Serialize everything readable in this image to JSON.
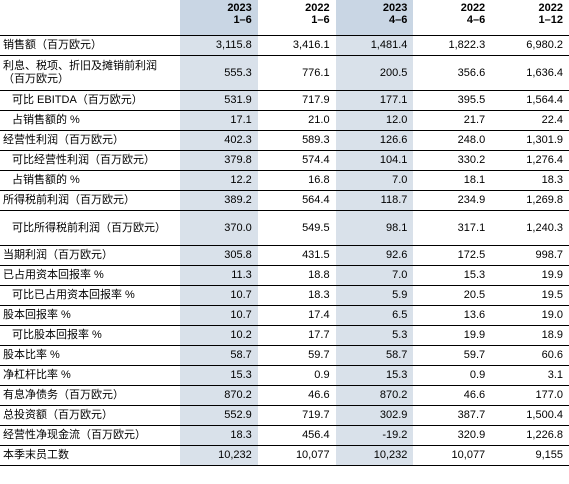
{
  "columns": [
    {
      "year": "2023",
      "period": "1–6",
      "highlight": true
    },
    {
      "year": "2022",
      "period": "1–6",
      "highlight": false
    },
    {
      "year": "2023",
      "period": "4–6",
      "highlight": true
    },
    {
      "year": "2022",
      "period": "4–6",
      "highlight": false
    },
    {
      "year": "2022",
      "period": "1–12",
      "highlight": false
    }
  ],
  "rows": [
    {
      "label": "销售额（百万欧元）",
      "indent": false,
      "values": [
        "3,115.8",
        "3,416.1",
        "1,481.4",
        "1,822.3",
        "6,980.2"
      ]
    },
    {
      "label": "利息、税项、折旧及摊销前利润（百万欧元）",
      "indent": false,
      "values": [
        "555.3",
        "776.1",
        "200.5",
        "356.6",
        "1,636.4"
      ]
    },
    {
      "label": "可比 EBITDA（百万欧元）",
      "indent": true,
      "values": [
        "531.9",
        "717.9",
        "177.1",
        "395.5",
        "1,564.4"
      ]
    },
    {
      "label": "占销售额的 %",
      "indent": true,
      "values": [
        "17.1",
        "21.0",
        "12.0",
        "21.7",
        "22.4"
      ]
    },
    {
      "label": "经营性利润（百万欧元）",
      "indent": false,
      "values": [
        "402.3",
        "589.3",
        "126.6",
        "248.0",
        "1,301.9"
      ]
    },
    {
      "label": "可比经营性利润（百万欧元）",
      "indent": true,
      "values": [
        "379.8",
        "574.4",
        "104.1",
        "330.2",
        "1,276.4"
      ]
    },
    {
      "label": "占销售额的 %",
      "indent": true,
      "values": [
        "12.2",
        "16.8",
        "7.0",
        "18.1",
        "18.3"
      ]
    },
    {
      "label": "所得税前利润（百万欧元）",
      "indent": false,
      "values": [
        "389.2",
        "564.4",
        "118.7",
        "234.9",
        "1,269.8"
      ]
    },
    {
      "label": "可比所得税前利润（百万欧元）",
      "indent": true,
      "values": [
        "370.0",
        "549.5",
        "98.1",
        "317.1",
        "1,240.3"
      ]
    },
    {
      "label": "当期利润（百万欧元）",
      "indent": false,
      "values": [
        "305.8",
        "431.5",
        "92.6",
        "172.5",
        "998.7"
      ]
    },
    {
      "label": "已占用资本回报率 %",
      "indent": false,
      "values": [
        "11.3",
        "18.8",
        "7.0",
        "15.3",
        "19.9"
      ]
    },
    {
      "label": "可比已占用资本回报率 %",
      "indent": true,
      "values": [
        "10.7",
        "18.3",
        "5.9",
        "20.5",
        "19.5"
      ]
    },
    {
      "label": "股本回报率 %",
      "indent": false,
      "values": [
        "10.7",
        "17.4",
        "6.5",
        "13.6",
        "19.0"
      ]
    },
    {
      "label": "可比股本回报率 %",
      "indent": true,
      "values": [
        "10.2",
        "17.7",
        "5.3",
        "19.9",
        "18.9"
      ]
    },
    {
      "label": "股本比率 %",
      "indent": false,
      "values": [
        "58.7",
        "59.7",
        "58.7",
        "59.7",
        "60.6"
      ]
    },
    {
      "label": "净杠杆比率 %",
      "indent": false,
      "values": [
        "15.3",
        "0.9",
        "15.3",
        "0.9",
        "3.1"
      ]
    },
    {
      "label": "有息净债务（百万欧元）",
      "indent": false,
      "values": [
        "870.2",
        "46.6",
        "870.2",
        "46.6",
        "177.0"
      ]
    },
    {
      "label": "总投资额（百万欧元）",
      "indent": false,
      "values": [
        "552.9",
        "719.7",
        "302.9",
        "387.7",
        "1,500.4"
      ]
    },
    {
      "label": "经营性净现金流（百万欧元）",
      "indent": false,
      "values": [
        "18.3",
        "456.4",
        "-19.2",
        "320.9",
        "1,226.8"
      ]
    },
    {
      "label": "本季末员工数",
      "indent": false,
      "values": [
        "10,232",
        "10,077",
        "10,232",
        "10,077",
        "9,155"
      ]
    }
  ]
}
